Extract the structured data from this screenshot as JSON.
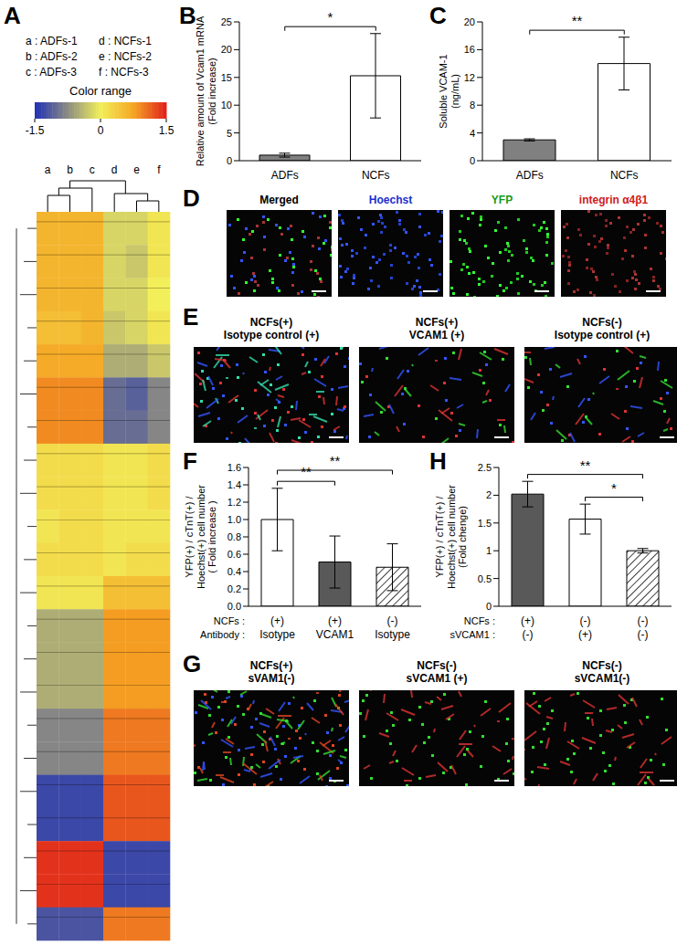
{
  "panels": {
    "A": {
      "letter": "A",
      "sample_labels": [
        "a : ADFs-1",
        "b : ADFs-2",
        "c : ADFs-3",
        "d : NCFs-1",
        "e : NCFs-2",
        "f : NCFs-3"
      ],
      "colorbar": {
        "title": "Color range",
        "range": [
          -1.5,
          1.5
        ],
        "ticks": [
          -1.5,
          0,
          1.5
        ]
      },
      "column_letters": [
        "a",
        "b",
        "c",
        "d",
        "e",
        "f"
      ],
      "cells": [
        [
          0.6,
          0.6,
          0.6,
          -0.2,
          -0.2,
          0.1
        ],
        [
          0.6,
          0.6,
          0.6,
          -0.2,
          -0.3,
          0.1
        ],
        [
          0.6,
          0.6,
          0.6,
          -0.2,
          -0.2,
          0.0
        ],
        [
          0.5,
          0.5,
          0.6,
          -0.3,
          -0.2,
          0.1
        ],
        [
          0.7,
          0.7,
          0.7,
          -0.5,
          -0.5,
          -0.3
        ],
        [
          0.9,
          0.9,
          0.9,
          -1.0,
          -1.1,
          -0.8
        ],
        [
          0.9,
          0.9,
          0.9,
          -1.0,
          -1.0,
          -0.8
        ],
        [
          0.2,
          0.2,
          0.2,
          0.1,
          0.1,
          0.2
        ],
        [
          0.2,
          0.2,
          0.2,
          0.1,
          0.1,
          0.2
        ],
        [
          0.1,
          0.2,
          0.2,
          0.1,
          0.1,
          0.1
        ],
        [
          0.2,
          0.2,
          0.2,
          0.1,
          0.2,
          0.2
        ],
        [
          0.1,
          0.1,
          0.1,
          0.5,
          0.5,
          0.5
        ],
        [
          -0.5,
          -0.5,
          -0.5,
          0.8,
          0.8,
          0.8
        ],
        [
          -0.5,
          -0.5,
          -0.5,
          0.8,
          0.8,
          0.8
        ],
        [
          -0.5,
          -0.5,
          -0.5,
          0.8,
          0.8,
          0.8
        ],
        [
          -0.8,
          -0.8,
          -0.8,
          1.0,
          1.0,
          1.0
        ],
        [
          -0.8,
          -0.8,
          -0.8,
          1.0,
          1.0,
          1.0
        ],
        [
          -1.3,
          -1.3,
          -1.3,
          1.2,
          1.2,
          1.2
        ],
        [
          -1.3,
          -1.3,
          -1.3,
          1.2,
          1.2,
          1.2
        ],
        [
          1.4,
          1.4,
          1.4,
          -1.3,
          -1.3,
          -1.3
        ],
        [
          1.4,
          1.4,
          1.4,
          -1.3,
          -1.3,
          -1.3
        ],
        [
          -1.2,
          -1.2,
          -1.2,
          1.0,
          1.0,
          1.0
        ]
      ]
    },
    "D": {
      "letter": "D",
      "images": [
        "Merged",
        "Hoechst",
        "YFP",
        "integrin α4β1"
      ]
    },
    "E": {
      "letter": "E",
      "images": [
        [
          "NCFs(+)",
          "Isotype control (+)"
        ],
        [
          "NCFs(+)",
          "VCAM1 (+)"
        ],
        [
          "NCFs(-)",
          "Isotype control (+)"
        ]
      ]
    },
    "G": {
      "letter": "G",
      "images": [
        [
          "NCFs(+)",
          "sVAM1(-)"
        ],
        [
          "NCFs(-)",
          "sVCAM1 (+)"
        ],
        [
          "NCFs(-)",
          "sVCAM1(-)"
        ]
      ]
    }
  },
  "chart_data": [
    {
      "type": "bar",
      "title": "B",
      "ylabel": [
        "Relative amount of Vcam1 mRNA",
        "(Fold increase)"
      ],
      "categories": [
        "ADFs",
        "NCFs"
      ],
      "values": [
        1.0,
        15.3
      ],
      "errors": [
        0.35,
        7.6
      ],
      "colors": [
        "#808080",
        "#ffffff"
      ],
      "ylim": [
        0,
        25
      ],
      "yticks": [
        0,
        5,
        10,
        15,
        20,
        25
      ],
      "annotations": [
        {
          "from": 0,
          "to": 1,
          "text": "*"
        }
      ]
    },
    {
      "type": "bar",
      "title": "C",
      "ylabel": [
        "Soluble VCAM-1",
        "(ng/mL)"
      ],
      "categories": [
        "ADFs",
        "NCFs"
      ],
      "values": [
        3.0,
        14.0
      ],
      "errors": [
        0.15,
        3.8
      ],
      "colors": [
        "#808080",
        "#ffffff"
      ],
      "ylim": [
        0,
        20
      ],
      "yticks": [
        0,
        4,
        8,
        12,
        16,
        20
      ],
      "annotations": [
        {
          "from": 0,
          "to": 1,
          "text": "**"
        }
      ]
    },
    {
      "type": "bar",
      "title": "F",
      "ylabel": [
        "YFP(+) / cTnT(+) /",
        "Hoechst(+) cell number",
        "( Fold increase )"
      ],
      "categories": [
        [
          "(+)",
          "Isotype"
        ],
        [
          "(+)",
          "VCAM1"
        ],
        [
          "(-)",
          "Isotype"
        ]
      ],
      "category_row_labels": [
        "NCFs :",
        "Antibody :"
      ],
      "values": [
        1.0,
        0.51,
        0.45
      ],
      "errors": [
        0.36,
        0.3,
        0.27
      ],
      "colors": [
        "#ffffff",
        "#595959",
        "#ffffff"
      ],
      "ylim": [
        0,
        1.6
      ],
      "yticks": [
        {
          "value": 0,
          "label": "0.0"
        },
        0.2,
        0.4,
        0.6,
        0.8,
        {
          "value": 1,
          "label": "1.0"
        },
        1.2,
        1.4,
        1.6
      ],
      "annotations": [
        {
          "from": 0,
          "to": 1,
          "text": "**"
        },
        {
          "from": 0,
          "to": 2,
          "text": "**"
        }
      ]
    },
    {
      "type": "bar",
      "title": "H",
      "ylabel": [
        "YFP(+) / cTnT(+) /",
        "Hoechst(+) cell number",
        "(Fold chenge)"
      ],
      "categories": [
        [
          "(+)",
          "(-)"
        ],
        [
          "(-)",
          "(+)"
        ],
        [
          "(-)",
          "(-)"
        ]
      ],
      "category_row_labels": [
        "NCFs :",
        "sVCAM1 :"
      ],
      "values": [
        2.02,
        1.57,
        1.0
      ],
      "errors": [
        0.23,
        0.27,
        0.04
      ],
      "colors": [
        "#595959",
        "#ffffff",
        "#ffffff"
      ],
      "ylim": [
        0,
        2.5
      ],
      "yticks": [
        0,
        0.5,
        1,
        1.5,
        2,
        2.5
      ],
      "annotations": [
        {
          "from": 1,
          "to": 2,
          "text": "*"
        },
        {
          "from": 0,
          "to": 2,
          "text": "**"
        }
      ]
    }
  ]
}
